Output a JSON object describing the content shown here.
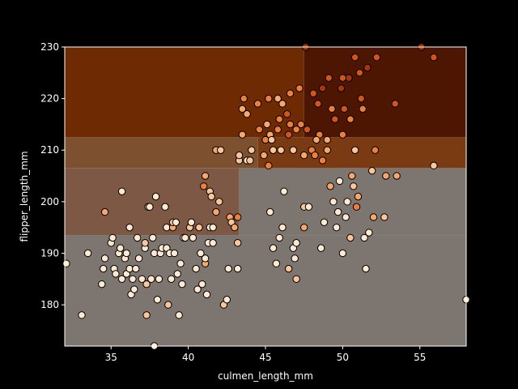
{
  "chart_data": {
    "type": "scatter",
    "title": "",
    "xlabel": "culmen_length_mm",
    "ylabel": "flipper_length_mm",
    "xlim": [
      32,
      58
    ],
    "ylim": [
      172,
      230
    ],
    "xticks": [
      35,
      40,
      45,
      50,
      55
    ],
    "yticks": [
      180,
      190,
      200,
      210,
      220,
      230
    ],
    "grid": false,
    "background": "#000000",
    "axis_color": "#ffffff",
    "regions": [
      {
        "x0": 32,
        "x1": 58,
        "y0": 172,
        "y1": 193.5,
        "color": "#7d7670"
      },
      {
        "x0": 43.3,
        "x1": 58,
        "y0": 193.5,
        "y1": 206.5,
        "color": "#7d7670"
      },
      {
        "x0": 32,
        "x1": 43.3,
        "y0": 193.5,
        "y1": 206.5,
        "color": "#7d5844"
      },
      {
        "x0": 32,
        "x1": 44.5,
        "y0": 206.5,
        "y1": 212.5,
        "color": "#7d5030"
      },
      {
        "x0": 44.5,
        "x1": 58,
        "y0": 206.5,
        "y1": 212.5,
        "color": "#7a3a12"
      },
      {
        "x0": 32,
        "x1": 47.5,
        "y0": 212.5,
        "y1": 230,
        "color": "#6e2a02"
      },
      {
        "x0": 47.5,
        "x1": 58,
        "y0": 212.5,
        "y1": 230,
        "color": "#4c1602"
      }
    ],
    "point_colors": [
      "#fde8d2",
      "#fbc59b",
      "#f8a66a",
      "#ee7f3a",
      "#d4541c",
      "#a8360a"
    ],
    "points": [
      [
        32.1,
        188,
        0
      ],
      [
        33.1,
        178,
        0
      ],
      [
        33.5,
        190,
        0
      ],
      [
        34.4,
        184,
        0
      ],
      [
        34.5,
        187,
        0
      ],
      [
        34.6,
        189,
        0
      ],
      [
        34.6,
        198,
        2
      ],
      [
        35.0,
        192,
        0
      ],
      [
        35.1,
        193,
        0
      ],
      [
        35.2,
        187,
        0
      ],
      [
        35.3,
        186,
        0
      ],
      [
        35.5,
        190,
        0
      ],
      [
        35.6,
        191,
        0
      ],
      [
        35.7,
        185,
        0
      ],
      [
        35.7,
        202,
        0
      ],
      [
        35.9,
        189,
        0
      ],
      [
        36.0,
        186,
        0
      ],
      [
        36.0,
        190,
        0
      ],
      [
        36.2,
        187,
        0
      ],
      [
        36.2,
        195,
        0
      ],
      [
        36.3,
        182,
        0
      ],
      [
        36.4,
        185,
        0
      ],
      [
        36.5,
        183,
        0
      ],
      [
        36.6,
        187,
        0
      ],
      [
        36.7,
        193,
        0
      ],
      [
        36.8,
        189,
        0
      ],
      [
        37.0,
        185,
        0
      ],
      [
        37.2,
        191,
        0
      ],
      [
        37.2,
        192,
        1
      ],
      [
        37.3,
        184,
        1
      ],
      [
        37.3,
        178,
        1
      ],
      [
        37.4,
        199,
        1
      ],
      [
        37.5,
        199,
        0
      ],
      [
        37.6,
        185,
        0
      ],
      [
        37.7,
        193,
        0
      ],
      [
        37.8,
        190,
        0
      ],
      [
        37.8,
        172,
        0
      ],
      [
        37.9,
        201,
        0
      ],
      [
        38.0,
        181,
        0
      ],
      [
        38.1,
        185,
        0
      ],
      [
        38.2,
        190,
        0
      ],
      [
        38.3,
        191,
        0
      ],
      [
        38.5,
        199,
        0
      ],
      [
        38.6,
        191,
        0
      ],
      [
        38.6,
        195,
        0
      ],
      [
        38.7,
        180,
        1
      ],
      [
        38.8,
        190,
        0
      ],
      [
        38.9,
        185,
        0
      ],
      [
        39.0,
        195,
        2
      ],
      [
        39.0,
        196,
        1
      ],
      [
        39.1,
        190,
        0
      ],
      [
        39.2,
        196,
        0
      ],
      [
        39.3,
        186,
        0
      ],
      [
        39.4,
        178,
        0
      ],
      [
        39.5,
        188,
        0
      ],
      [
        39.6,
        184,
        0
      ],
      [
        39.7,
        193,
        0
      ],
      [
        39.8,
        193,
        0
      ],
      [
        40.1,
        195,
        1
      ],
      [
        40.2,
        196,
        0
      ],
      [
        40.3,
        193,
        0
      ],
      [
        40.5,
        187,
        0
      ],
      [
        40.6,
        183,
        0
      ],
      [
        40.7,
        195,
        1
      ],
      [
        40.8,
        190,
        0
      ],
      [
        40.9,
        184,
        0
      ],
      [
        41.0,
        203,
        3
      ],
      [
        41.1,
        188,
        2
      ],
      [
        41.1,
        205,
        2
      ],
      [
        41.1,
        189,
        0
      ],
      [
        41.2,
        182,
        0
      ],
      [
        41.3,
        192,
        0
      ],
      [
        41.4,
        195,
        0
      ],
      [
        41.4,
        202,
        1
      ],
      [
        41.5,
        201,
        1
      ],
      [
        41.6,
        195,
        0
      ],
      [
        41.6,
        192,
        0
      ],
      [
        41.8,
        198,
        2
      ],
      [
        41.8,
        210,
        2
      ],
      [
        42.0,
        200,
        1
      ],
      [
        42.1,
        210,
        1
      ],
      [
        42.3,
        180,
        1
      ],
      [
        42.5,
        181,
        0
      ],
      [
        42.6,
        187,
        0
      ],
      [
        42.7,
        197,
        2
      ],
      [
        42.8,
        196,
        1
      ],
      [
        43.0,
        195,
        2
      ],
      [
        43.2,
        192,
        1
      ],
      [
        43.2,
        197,
        3
      ],
      [
        43.2,
        187,
        0
      ],
      [
        43.3,
        208,
        1
      ],
      [
        43.3,
        209,
        1
      ],
      [
        43.5,
        213,
        2
      ],
      [
        43.5,
        218,
        2
      ],
      [
        43.6,
        220,
        3
      ],
      [
        43.8,
        217,
        2
      ],
      [
        43.8,
        208,
        0
      ],
      [
        44.0,
        208,
        1
      ],
      [
        44.1,
        210,
        1
      ],
      [
        44.5,
        219,
        3
      ],
      [
        44.6,
        214,
        3
      ],
      [
        45.0,
        212,
        3
      ],
      [
        45.1,
        215,
        2
      ],
      [
        45.2,
        220,
        3
      ],
      [
        45.2,
        207,
        3
      ],
      [
        45.3,
        198,
        0
      ],
      [
        45.3,
        213,
        2
      ],
      [
        45.4,
        212,
        1
      ],
      [
        45.5,
        191,
        0
      ],
      [
        45.5,
        210,
        1
      ],
      [
        45.7,
        188,
        0
      ],
      [
        45.8,
        214,
        3
      ],
      [
        45.8,
        220,
        2
      ],
      [
        45.9,
        193,
        0
      ],
      [
        45.9,
        216,
        3
      ],
      [
        46.0,
        210,
        1
      ],
      [
        46.1,
        219,
        2
      ],
      [
        46.1,
        195,
        0
      ],
      [
        46.4,
        217,
        4
      ],
      [
        46.5,
        187,
        1
      ],
      [
        46.5,
        213,
        4
      ],
      [
        46.6,
        215,
        3
      ],
      [
        46.6,
        221,
        3
      ],
      [
        46.8,
        210,
        1
      ],
      [
        46.8,
        191,
        0
      ],
      [
        46.9,
        189,
        0
      ],
      [
        47.0,
        192,
        0
      ],
      [
        47.0,
        185,
        1
      ],
      [
        47.0,
        214,
        3
      ],
      [
        47.2,
        222,
        3
      ],
      [
        47.3,
        215,
        3
      ],
      [
        47.5,
        209,
        2
      ],
      [
        47.5,
        199,
        1
      ],
      [
        47.5,
        195,
        2
      ],
      [
        47.6,
        230,
        5
      ],
      [
        47.7,
        214,
        4
      ],
      [
        47.8,
        199,
        0
      ],
      [
        48.0,
        210,
        3
      ],
      [
        48.1,
        221,
        4
      ],
      [
        48.2,
        209,
        3
      ],
      [
        48.4,
        219,
        4
      ],
      [
        48.5,
        213,
        3
      ],
      [
        48.6,
        191,
        0
      ],
      [
        48.7,
        222,
        5
      ],
      [
        48.7,
        208,
        3
      ],
      [
        49.0,
        210,
        2
      ],
      [
        49.0,
        212,
        2
      ],
      [
        49.2,
        203,
        2
      ],
      [
        49.3,
        218,
        3
      ],
      [
        49.4,
        200,
        0
      ],
      [
        49.5,
        216,
        4
      ],
      [
        49.6,
        195,
        0
      ],
      [
        49.7,
        198,
        0
      ],
      [
        50.0,
        213,
        3
      ],
      [
        50.0,
        190,
        0
      ],
      [
        50.1,
        218,
        4
      ],
      [
        50.2,
        197,
        0
      ],
      [
        50.3,
        200,
        0
      ],
      [
        50.4,
        224,
        5
      ],
      [
        50.5,
        216,
        3
      ],
      [
        50.5,
        193,
        1
      ],
      [
        50.7,
        203,
        1
      ],
      [
        50.8,
        210,
        1
      ],
      [
        50.8,
        228,
        4
      ],
      [
        51.0,
        201,
        2
      ],
      [
        51.1,
        225,
        4
      ],
      [
        51.2,
        220,
        4
      ],
      [
        51.3,
        218,
        3
      ],
      [
        51.4,
        193,
        0
      ],
      [
        51.5,
        187,
        0
      ],
      [
        51.7,
        194,
        0
      ],
      [
        51.9,
        206,
        1
      ],
      [
        52.0,
        197,
        2
      ],
      [
        52.1,
        210,
        3
      ],
      [
        52.2,
        228,
        4
      ],
      [
        52.7,
        197,
        1
      ],
      [
        52.8,
        205,
        2
      ],
      [
        53.4,
        219,
        4
      ],
      [
        53.5,
        205,
        2
      ],
      [
        55.1,
        230,
        5
      ],
      [
        55.9,
        207,
        1
      ],
      [
        55.9,
        228,
        4
      ],
      [
        58.0,
        181,
        0
      ],
      [
        48.8,
        196,
        0
      ],
      [
        49.8,
        204,
        0
      ],
      [
        50.9,
        199,
        3
      ],
      [
        48.3,
        212,
        2
      ],
      [
        46.2,
        202,
        0
      ],
      [
        44.9,
        209,
        2
      ],
      [
        50.6,
        205,
        2
      ],
      [
        49.1,
        224,
        4
      ],
      [
        51.6,
        226,
        5
      ],
      [
        49.9,
        222,
        5
      ],
      [
        50.0,
        224,
        4
      ]
    ]
  }
}
